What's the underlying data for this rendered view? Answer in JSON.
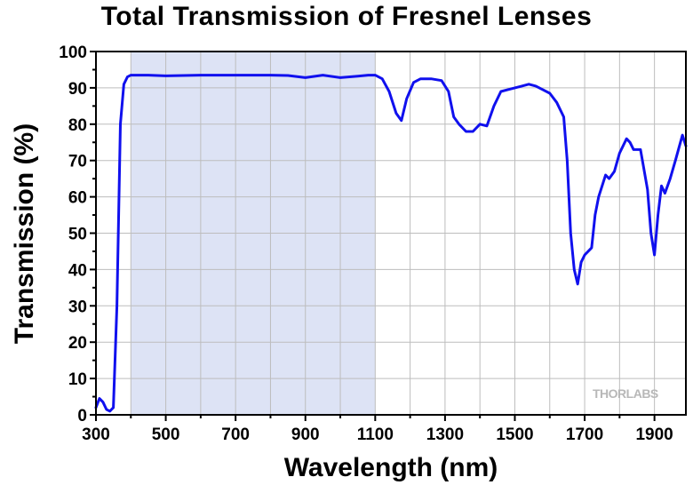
{
  "chart_data": {
    "type": "line",
    "title": "Total Transmission of Fresnel Lenses",
    "xlabel": "Wavelength (nm)",
    "ylabel": "Transmission (%)",
    "xlim": [
      300,
      1990
    ],
    "ylim": [
      0,
      100
    ],
    "xticks": [
      300,
      500,
      700,
      900,
      1100,
      1300,
      1500,
      1700,
      1900
    ],
    "yticks": [
      0,
      10,
      20,
      30,
      40,
      50,
      60,
      70,
      80,
      90,
      100
    ],
    "grid": true,
    "highlight_region": {
      "x_start": 400,
      "x_end": 1100,
      "color": "#dde3f5"
    },
    "line_color": "#1010ee",
    "series": [
      {
        "name": "",
        "x": [
          300,
          310,
          320,
          330,
          340,
          350,
          360,
          370,
          380,
          390,
          400,
          410,
          450,
          500,
          600,
          700,
          800,
          850,
          900,
          950,
          1000,
          1050,
          1080,
          1100,
          1120,
          1140,
          1160,
          1175,
          1190,
          1210,
          1230,
          1260,
          1290,
          1310,
          1325,
          1340,
          1360,
          1380,
          1400,
          1420,
          1440,
          1460,
          1480,
          1500,
          1520,
          1540,
          1560,
          1580,
          1600,
          1620,
          1640,
          1650,
          1660,
          1670,
          1680,
          1690,
          1700,
          1720,
          1730,
          1740,
          1760,
          1770,
          1785,
          1800,
          1820,
          1830,
          1840,
          1860,
          1880,
          1890,
          1900,
          1910,
          1920,
          1930,
          1945,
          1960,
          1980,
          1990
        ],
        "y": [
          2,
          4.5,
          3.5,
          1.5,
          1,
          2,
          30,
          80,
          91,
          93,
          93.5,
          93.5,
          93.5,
          93.3,
          93.5,
          93.5,
          93.5,
          93.4,
          92.8,
          93.5,
          92.8,
          93.2,
          93.5,
          93.5,
          92.5,
          89,
          83,
          81,
          87,
          91.5,
          92.5,
          92.5,
          92,
          89,
          82,
          80,
          78,
          78,
          80,
          79.5,
          85,
          89,
          89.5,
          90,
          90.5,
          91,
          90.5,
          89.5,
          88.5,
          86,
          82,
          70,
          50,
          40,
          36,
          42,
          44,
          46,
          55,
          60,
          66,
          65,
          67,
          72,
          76,
          75,
          73,
          73,
          62,
          50,
          44,
          55,
          63,
          61,
          65,
          70,
          77,
          74
        ]
      }
    ]
  },
  "watermark": "THORLABS"
}
